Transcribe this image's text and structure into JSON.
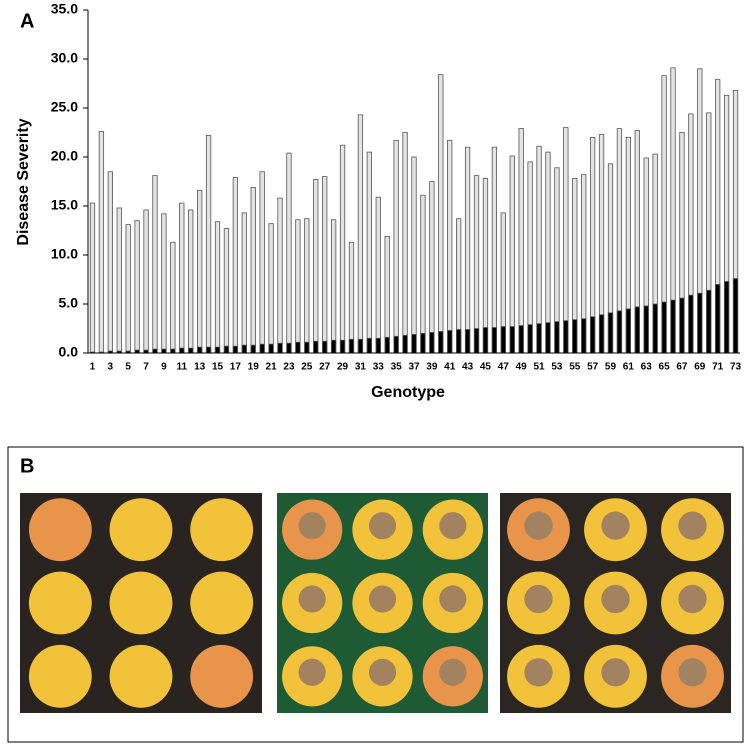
{
  "chart_data": {
    "type": "bar",
    "panel_label": "A",
    "xlabel": "Genotype",
    "ylabel": "Disease Severity",
    "categories": [
      "1",
      null,
      "3",
      null,
      "5",
      null,
      "7",
      null,
      "9",
      null,
      "11",
      null,
      "13",
      null,
      "15",
      null,
      "17",
      null,
      "19",
      null,
      "21",
      null,
      "23",
      null,
      "25",
      null,
      "27",
      null,
      "29",
      null,
      "31",
      null,
      "33",
      null,
      "35",
      null,
      "37",
      null,
      "39",
      null,
      "41",
      null,
      "43",
      null,
      "45",
      null,
      "47",
      null,
      "49",
      null,
      "51",
      null,
      "53",
      null,
      "55",
      null,
      "57",
      null,
      "59",
      null,
      "61",
      null,
      "63",
      null,
      "65",
      null,
      "67",
      null,
      "69",
      null,
      "71",
      null,
      "73"
    ],
    "series": [
      {
        "color": "#e3e3e3",
        "values": [
          15.3,
          22.6,
          18.5,
          14.8,
          13.1,
          13.5,
          14.6,
          18.1,
          14.2,
          11.3,
          15.3,
          14.6,
          16.6,
          22.2,
          13.4,
          12.7,
          17.9,
          14.3,
          16.9,
          18.5,
          13.2,
          15.8,
          20.4,
          13.6,
          13.7,
          17.7,
          18.0,
          13.6,
          21.2,
          11.3,
          24.3,
          20.5,
          15.9,
          11.9,
          21.7,
          22.5,
          20.0,
          16.1,
          17.5,
          28.4,
          21.7,
          13.7,
          21.0,
          18.1,
          17.8,
          21.0,
          14.3,
          20.1,
          22.9,
          19.5,
          21.1,
          20.5,
          18.9,
          23.0,
          17.8,
          18.2,
          22.0,
          22.3,
          19.3,
          22.9,
          22.0,
          22.7,
          19.9,
          20.3,
          28.3,
          29.1,
          22.5,
          24.4,
          29.0,
          24.5,
          27.9,
          26.3,
          26.8
        ]
      },
      {
        "color": "#000000",
        "values": [
          0.1,
          0.1,
          0.2,
          0.2,
          0.2,
          0.3,
          0.3,
          0.4,
          0.4,
          0.4,
          0.5,
          0.5,
          0.6,
          0.6,
          0.6,
          0.7,
          0.7,
          0.8,
          0.8,
          0.9,
          0.9,
          1.0,
          1.0,
          1.1,
          1.1,
          1.2,
          1.2,
          1.3,
          1.3,
          1.4,
          1.4,
          1.5,
          1.5,
          1.6,
          1.7,
          1.8,
          1.9,
          2.0,
          2.1,
          2.2,
          2.3,
          2.4,
          2.4,
          2.5,
          2.6,
          2.6,
          2.7,
          2.7,
          2.8,
          2.9,
          3.0,
          3.1,
          3.2,
          3.3,
          3.4,
          3.5,
          3.7,
          3.9,
          4.1,
          4.3,
          4.5,
          4.7,
          4.8,
          5.0,
          5.2,
          5.4,
          5.6,
          5.9,
          6.1,
          6.4,
          7.0,
          7.3,
          7.6
        ]
      }
    ],
    "ylim": [
      0,
      35
    ],
    "yticks": [
      {
        "value": 0,
        "label": "0.0"
      },
      {
        "value": 5,
        "label": "5.0"
      },
      {
        "value": 10,
        "label": "10.0"
      },
      {
        "value": 15,
        "label": "15.0"
      },
      {
        "value": 20,
        "label": "20.0"
      },
      {
        "value": 25,
        "label": "25.0"
      },
      {
        "value": 30,
        "label": "30.0"
      },
      {
        "value": 35,
        "label": "35.0"
      }
    ],
    "grid": false
  },
  "panel_b": {
    "label": "B"
  }
}
